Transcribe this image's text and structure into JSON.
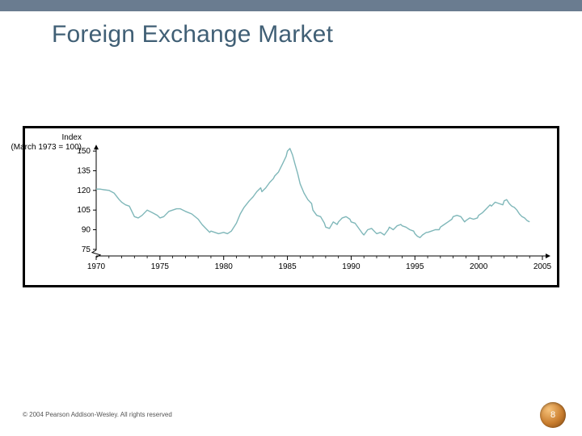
{
  "layout": {
    "top_bar_color": "#6a7c90",
    "background_color": "#ffffff",
    "title_color": "#405f75"
  },
  "title": "Foreign Exchange Market",
  "copyright": "© 2004 Pearson Addison-Wesley. All rights reserved",
  "page_number": "8",
  "chart": {
    "type": "line",
    "y_axis_title_line1": "Index",
    "y_axis_title_line2": "(March 1973 = 100)",
    "x_ticks": [
      1970,
      1975,
      1980,
      1985,
      1990,
      1995,
      2000,
      2005
    ],
    "y_ticks": [
      75,
      90,
      105,
      120,
      135,
      150
    ],
    "xlim": [
      1970,
      2005
    ],
    "ylim": [
      70,
      155
    ],
    "line_color": "#7fb7b9",
    "line_width": 1.4,
    "axis_color": "#000000",
    "tick_fontsize": 10,
    "axis_break_y": 72,
    "series": [
      [
        1970,
        121
      ],
      [
        1970.3,
        121
      ],
      [
        1970.6,
        120.5
      ],
      [
        1971,
        120
      ],
      [
        1971.4,
        118
      ],
      [
        1971.8,
        113
      ],
      [
        1972,
        111
      ],
      [
        1972.3,
        109
      ],
      [
        1972.6,
        108
      ],
      [
        1973,
        100
      ],
      [
        1973.3,
        99
      ],
      [
        1973.6,
        101
      ],
      [
        1974,
        105
      ],
      [
        1974.4,
        103
      ],
      [
        1974.8,
        101
      ],
      [
        1975,
        99
      ],
      [
        1975.3,
        100
      ],
      [
        1975.7,
        104
      ],
      [
        1976,
        105
      ],
      [
        1976.3,
        106
      ],
      [
        1976.6,
        106
      ],
      [
        1977,
        104
      ],
      [
        1977.5,
        102
      ],
      [
        1978,
        98
      ],
      [
        1978.3,
        94
      ],
      [
        1978.6,
        91
      ],
      [
        1978.9,
        88
      ],
      [
        1979,
        89
      ],
      [
        1979.3,
        88
      ],
      [
        1979.6,
        87
      ],
      [
        1980,
        88
      ],
      [
        1980.3,
        87
      ],
      [
        1980.6,
        89
      ],
      [
        1981,
        95
      ],
      [
        1981.3,
        102
      ],
      [
        1981.6,
        107
      ],
      [
        1982,
        112
      ],
      [
        1982.3,
        115
      ],
      [
        1982.6,
        119
      ],
      [
        1982.9,
        122
      ],
      [
        1983,
        119
      ],
      [
        1983.3,
        122
      ],
      [
        1983.6,
        126
      ],
      [
        1983.9,
        129
      ],
      [
        1984,
        131
      ],
      [
        1984.3,
        134
      ],
      [
        1984.6,
        140
      ],
      [
        1984.9,
        146
      ],
      [
        1985,
        150
      ],
      [
        1985.2,
        152
      ],
      [
        1985.4,
        147
      ],
      [
        1985.6,
        140
      ],
      [
        1985.8,
        133
      ],
      [
        1986,
        125
      ],
      [
        1986.3,
        118
      ],
      [
        1986.6,
        113
      ],
      [
        1986.9,
        110
      ],
      [
        1987,
        105
      ],
      [
        1987.3,
        101
      ],
      [
        1987.6,
        100
      ],
      [
        1987.9,
        95
      ],
      [
        1988,
        92
      ],
      [
        1988.3,
        91
      ],
      [
        1988.6,
        96
      ],
      [
        1988.9,
        94
      ],
      [
        1989,
        96
      ],
      [
        1989.3,
        99
      ],
      [
        1989.6,
        100
      ],
      [
        1989.9,
        98
      ],
      [
        1990,
        96
      ],
      [
        1990.3,
        95
      ],
      [
        1990.6,
        91
      ],
      [
        1990.9,
        87
      ],
      [
        1991,
        86
      ],
      [
        1991.3,
        90
      ],
      [
        1991.6,
        91
      ],
      [
        1991.9,
        88
      ],
      [
        1992,
        87
      ],
      [
        1992.3,
        88
      ],
      [
        1992.6,
        86
      ],
      [
        1992.9,
        90
      ],
      [
        1993,
        92
      ],
      [
        1993.3,
        90
      ],
      [
        1993.6,
        93
      ],
      [
        1993.9,
        94
      ],
      [
        1994,
        93
      ],
      [
        1994.3,
        92
      ],
      [
        1994.6,
        90
      ],
      [
        1994.9,
        89
      ],
      [
        1995,
        87
      ],
      [
        1995.2,
        85
      ],
      [
        1995.4,
        84
      ],
      [
        1995.6,
        86
      ],
      [
        1995.9,
        88
      ],
      [
        1996,
        88
      ],
      [
        1996.3,
        89
      ],
      [
        1996.6,
        90
      ],
      [
        1996.9,
        90
      ],
      [
        1997,
        92
      ],
      [
        1997.3,
        94
      ],
      [
        1997.6,
        96
      ],
      [
        1997.9,
        98
      ],
      [
        1998,
        100
      ],
      [
        1998.3,
        101
      ],
      [
        1998.6,
        100
      ],
      [
        1998.9,
        96
      ],
      [
        1999,
        97
      ],
      [
        1999.3,
        99
      ],
      [
        1999.6,
        98
      ],
      [
        1999.9,
        99
      ],
      [
        2000,
        101
      ],
      [
        2000.3,
        103
      ],
      [
        2000.6,
        106
      ],
      [
        2000.9,
        109
      ],
      [
        2001,
        108
      ],
      [
        2001.3,
        111
      ],
      [
        2001.6,
        110
      ],
      [
        2001.9,
        109
      ],
      [
        2002,
        112
      ],
      [
        2002.2,
        113
      ],
      [
        2002.4,
        110
      ],
      [
        2002.6,
        108
      ],
      [
        2002.8,
        107
      ],
      [
        2003,
        105
      ],
      [
        2003.2,
        102
      ],
      [
        2003.4,
        100
      ],
      [
        2003.6,
        99
      ],
      [
        2003.8,
        97
      ],
      [
        2004,
        96
      ]
    ]
  }
}
